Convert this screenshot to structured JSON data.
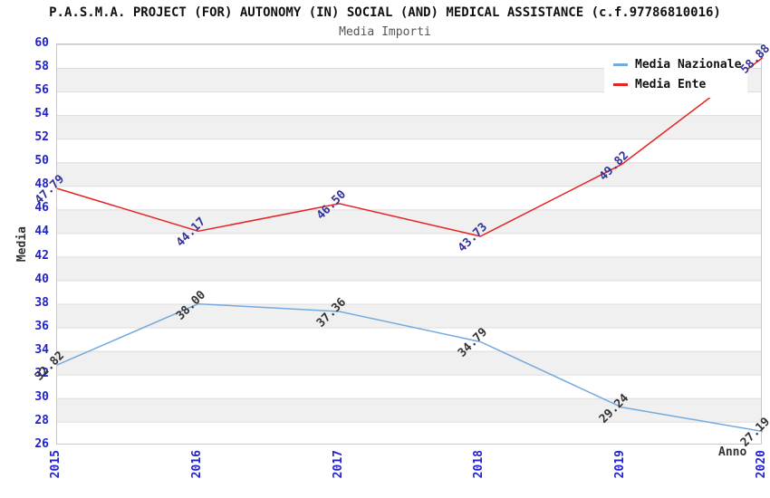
{
  "chart_data": {
    "type": "line",
    "title": "P.A.S.M.A. PROJECT (FOR) AUTONOMY (IN) SOCIAL (AND) MEDICAL ASSISTANCE (c.f.97786810016)",
    "subtitle": "Media Importi",
    "categories": [
      "2015",
      "2016",
      "2017",
      "2018",
      "2019",
      "2020"
    ],
    "series": [
      {
        "name": "Media Nazionale",
        "color": "#74aadd",
        "label_color": "#333333",
        "values": [
          32.82,
          38.0,
          37.36,
          34.79,
          29.24,
          27.19
        ]
      },
      {
        "name": "Media Ente",
        "color": "#e62222",
        "label_color": "#333399",
        "values": [
          47.79,
          44.17,
          46.5,
          43.73,
          49.82,
          58.88
        ]
      }
    ],
    "xlabel": "Anno",
    "ylabel": "Media",
    "ylim": [
      26,
      60
    ],
    "y_tick_step": 2,
    "x_tick_rotation": -90,
    "data_label_rotation": -45,
    "data_label_decimals": 2,
    "legend_position": "top-right",
    "grid": "alternating-horizontal-bands",
    "colors": {
      "tick_label": "#2222cc",
      "axis_title": "#333333",
      "band": "#f0f0f0",
      "gridline": "#dcdcdc",
      "plot_border": "#c8c8c8",
      "background": "#ffffff"
    }
  }
}
